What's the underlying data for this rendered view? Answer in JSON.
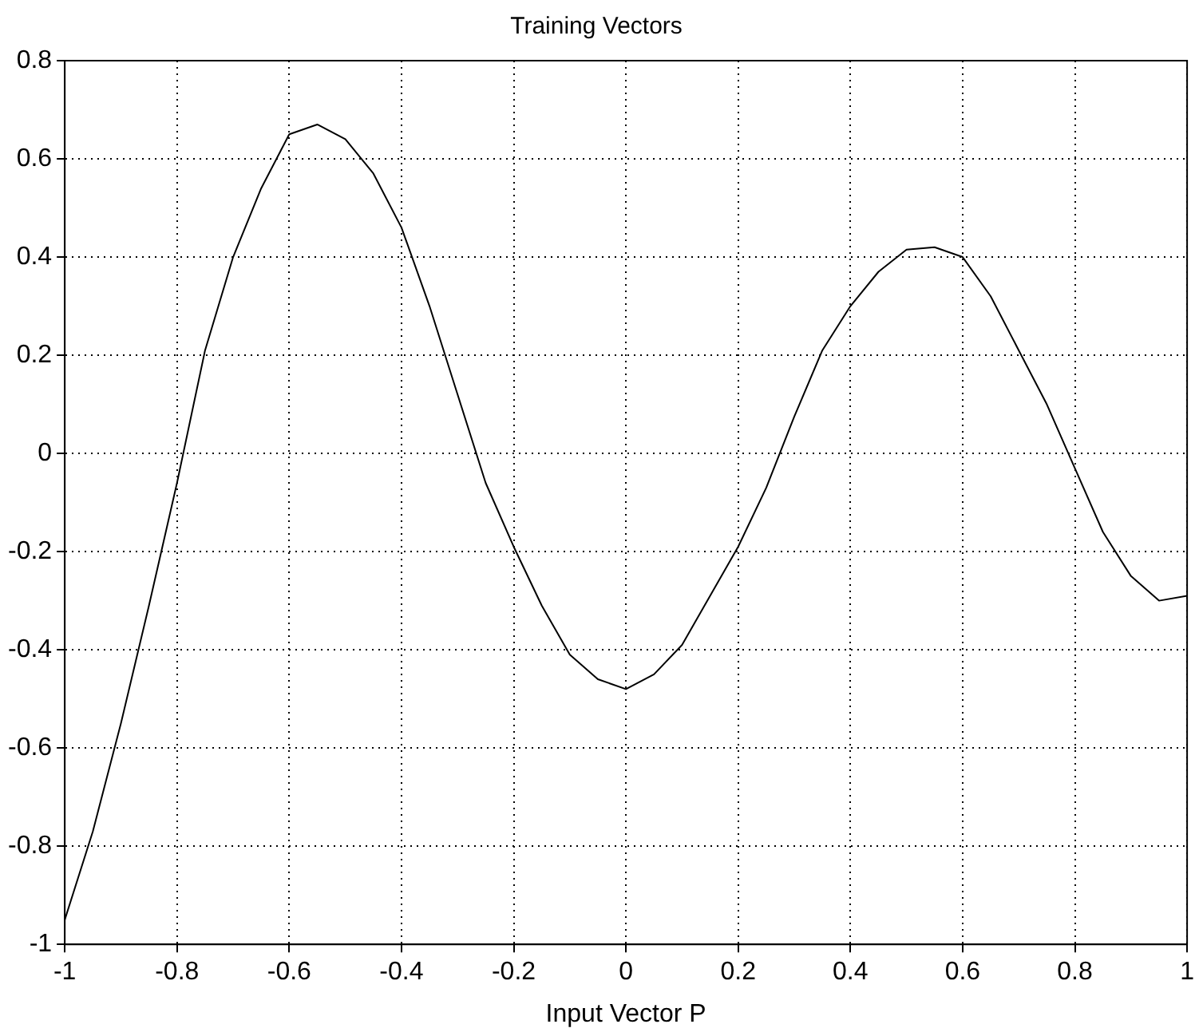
{
  "chart_data": {
    "type": "line",
    "title": "Training Vectors",
    "xlabel": "Input Vector P",
    "x": [
      -1,
      -0.95,
      -0.9,
      -0.85,
      -0.8,
      -0.75,
      -0.7,
      -0.65,
      -0.6,
      -0.55,
      -0.5,
      -0.45,
      -0.4,
      -0.35,
      -0.3,
      -0.25,
      -0.2,
      -0.15,
      -0.1,
      -0.05,
      0,
      0.05,
      0.1,
      0.15,
      0.2,
      0.25,
      0.3,
      0.35,
      0.4,
      0.45,
      0.5,
      0.55,
      0.6,
      0.65,
      0.7,
      0.75,
      0.8,
      0.85,
      0.9,
      0.95,
      1
    ],
    "series": [
      {
        "color": "#000000",
        "values": [
          -0.95,
          -0.77,
          -0.55,
          -0.31,
          -0.06,
          0.21,
          0.4,
          0.54,
          0.65,
          0.67,
          0.64,
          0.57,
          0.46,
          0.3,
          0.12,
          -0.06,
          -0.19,
          -0.31,
          -0.41,
          -0.46,
          -0.48,
          -0.45,
          -0.39,
          -0.29,
          -0.19,
          -0.07,
          0.075,
          0.21,
          0.3,
          0.37,
          0.415,
          0.42,
          0.4,
          0.32,
          0.21,
          0.1,
          -0.03,
          -0.16,
          -0.25,
          -0.3,
          -0.29
        ]
      }
    ],
    "xlim": [
      -1,
      1
    ],
    "xticks": [
      -1,
      -0.8,
      -0.6,
      -0.4,
      -0.2,
      0,
      0.2,
      0.4,
      0.6,
      0.8,
      1
    ],
    "ylim": [
      -1,
      0.8
    ],
    "yticks": [
      -1,
      -0.8,
      -0.6,
      -0.4,
      -0.2,
      0,
      0.2,
      0.4,
      0.6,
      0.8
    ],
    "grid": true,
    "marker": "none",
    "line_style": "solid"
  }
}
